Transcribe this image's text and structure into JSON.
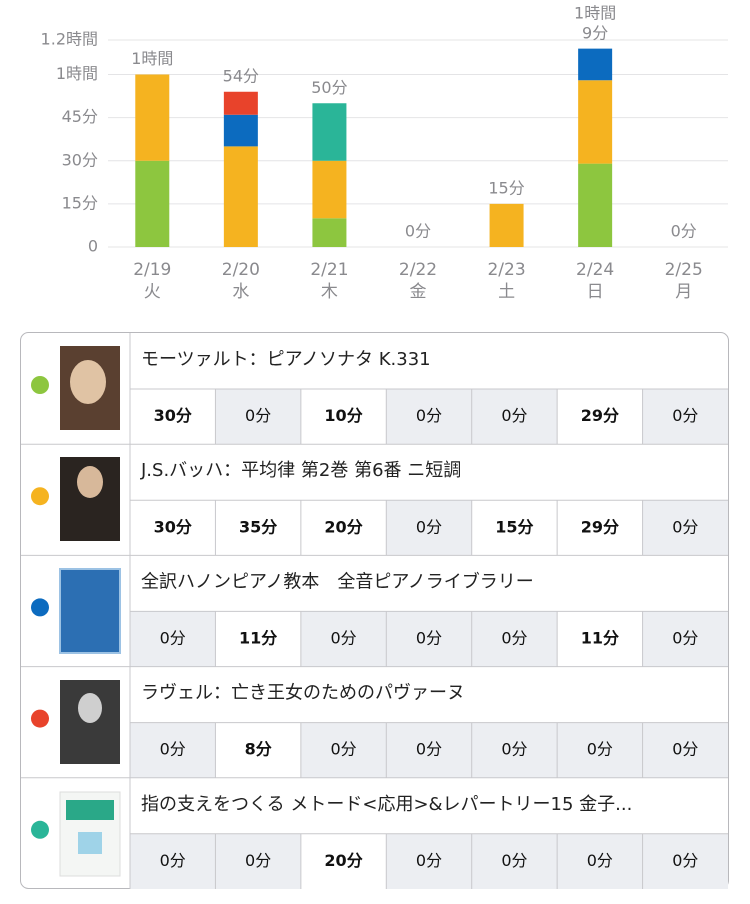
{
  "chart_data": {
    "type": "stacked-bar",
    "categories": [
      "2/19",
      "2/20",
      "2/21",
      "2/22",
      "2/23",
      "2/24",
      "2/25"
    ],
    "weekdays": [
      "火",
      "水",
      "木",
      "金",
      "土",
      "日",
      "月"
    ],
    "ylim": [
      0,
      72
    ],
    "yticks": [
      0,
      {
        "value": 15,
        "label": "15分"
      },
      {
        "value": 30,
        "label": "30分"
      },
      {
        "value": 45,
        "label": "45分"
      },
      {
        "value": 60,
        "label": "1時間"
      },
      {
        "value": 72,
        "label": "1.2時間"
      }
    ],
    "grid": true,
    "series": [
      {
        "name": "モーツァルト：ピアノソナタ K.331",
        "color": "#8dc63f",
        "values": [
          30,
          0,
          10,
          0,
          0,
          29,
          0
        ],
        "value_labels": [
          "30分",
          "0分",
          "10分",
          "0分",
          "0分",
          "29分",
          "0分"
        ]
      },
      {
        "name": "J.S.バッハ：平均律 第2巻 第6番 ニ短調",
        "color": "#f5b320",
        "values": [
          30,
          35,
          20,
          0,
          15,
          29,
          0
        ],
        "value_labels": [
          "30分",
          "35分",
          "20分",
          "0分",
          "15分",
          "29分",
          "0分"
        ]
      },
      {
        "name": "全訳ハノンピアノ教本　全音ピアノライブラリー",
        "color": "#0c6bbf",
        "values": [
          0,
          11,
          0,
          0,
          0,
          11,
          0
        ],
        "value_labels": [
          "0分",
          "11分",
          "0分",
          "0分",
          "0分",
          "11分",
          "0分"
        ]
      },
      {
        "name": "ラヴェル：亡き王女のためのパヴァーヌ",
        "color": "#e8432b",
        "values": [
          0,
          8,
          0,
          0,
          0,
          0,
          0
        ],
        "value_labels": [
          "0分",
          "8分",
          "0分",
          "0分",
          "0分",
          "0分",
          "0分"
        ]
      },
      {
        "name": "指の支えをつくる メトード<応用>&レパートリー15 金子...",
        "color": "#2ab598",
        "values": [
          0,
          0,
          20,
          0,
          0,
          0,
          0
        ],
        "value_labels": [
          "0分",
          "0分",
          "20分",
          "0分",
          "0分",
          "0分",
          "0分"
        ]
      }
    ],
    "totals": {
      "values": [
        60,
        54,
        50,
        0,
        15,
        69,
        0
      ],
      "value_labels": [
        "1時間",
        "54分",
        "50分",
        "0分",
        "15分",
        "1時間\n9分",
        "0分"
      ]
    }
  }
}
